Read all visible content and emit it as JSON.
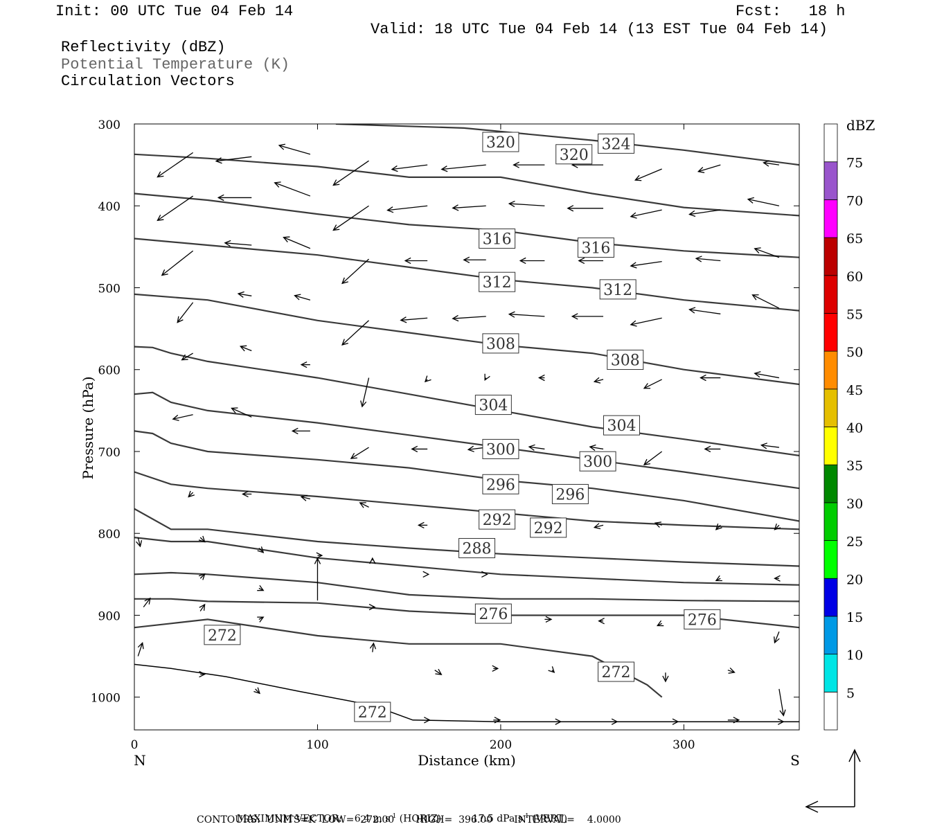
{
  "header": {
    "init": "Init: 00 UTC Tue 04 Feb 14",
    "fcst": "Fcst:   18 h",
    "valid": "Valid: 18 UTC Tue 04 Feb 14 (13 EST Tue 04 Feb 14)"
  },
  "fields": {
    "reflectivity": "Reflectivity (dBZ)",
    "theta": "Potential Temperature (K)",
    "circulation": "Circulation Vectors"
  },
  "footer": {
    "max_vector_label": "MAXIMUM VECTOR:",
    "max_horiz": "6.4 m s",
    "horiz_tag": "(HORIZ)",
    "max_vert": "17.5 dPa s",
    "vert_tag": "(VERT)",
    "exp": "-1",
    "contours_line": "CONTOURS:  UNITS=K  LOW=  272.00       HIGH=  396.00       INTERVAL=    4.0000"
  },
  "colors": {
    "contour": "#3a3a3a",
    "scale": [
      "#00e5e5",
      "#0099e5",
      "#0000e5",
      "#00ff00",
      "#00cc00",
      "#008800",
      "#ffff00",
      "#e5bf00",
      "#ff8c00",
      "#ff0000",
      "#dd0000",
      "#bb0000",
      "#ff00ff",
      "#9955cc",
      "#ffffff"
    ]
  },
  "chart_data": {
    "type": "cross-section",
    "xlabel": "Distance (km)",
    "ylabel": "Pressure (hPa)",
    "xlim": [
      0,
      363
    ],
    "ylim": [
      1040,
      300
    ],
    "x_ticks": [
      "0",
      "100",
      "200",
      "300"
    ],
    "x_tick_values": [
      0,
      100,
      200,
      300
    ],
    "y_ticks": [
      "300",
      "400",
      "500",
      "600",
      "700",
      "800",
      "900",
      "1000"
    ],
    "y_tick_values": [
      300,
      400,
      500,
      600,
      700,
      800,
      900,
      1000
    ],
    "left_end": "N",
    "right_end": "S",
    "colorbar": {
      "unit": "dBZ",
      "labels": [
        "5",
        "10",
        "15",
        "20",
        "25",
        "30",
        "35",
        "40",
        "45",
        "50",
        "55",
        "60",
        "65",
        "70",
        "75"
      ]
    },
    "isentropes": [
      {
        "level": 324,
        "x": [
          110,
          180,
          250,
          300,
          363
        ],
        "p": [
          300,
          305,
          320,
          332,
          350
        ]
      },
      {
        "level": 320,
        "x": [
          0,
          40,
          100,
          150,
          200,
          250,
          300,
          363
        ],
        "p": [
          337,
          342,
          352,
          365,
          365,
          385,
          402,
          412
        ]
      },
      {
        "level": 316,
        "x": [
          0,
          40,
          100,
          150,
          200,
          250,
          300,
          363
        ],
        "p": [
          385,
          393,
          410,
          423,
          430,
          445,
          455,
          463
        ]
      },
      {
        "level": 312,
        "x": [
          0,
          40,
          100,
          150,
          200,
          250,
          300,
          363
        ],
        "p": [
          440,
          448,
          460,
          475,
          490,
          500,
          515,
          528
        ]
      },
      {
        "level": 308,
        "x": [
          0,
          40,
          100,
          150,
          200,
          250,
          300,
          363
        ],
        "p": [
          508,
          515,
          540,
          555,
          570,
          580,
          600,
          618
        ]
      },
      {
        "level": 304,
        "x": [
          0,
          10,
          20,
          40,
          100,
          150,
          200,
          250,
          300,
          363
        ],
        "p": [
          572,
          573,
          580,
          590,
          610,
          630,
          650,
          670,
          685,
          705
        ]
      },
      {
        "level": 300,
        "x": [
          0,
          10,
          20,
          40,
          100,
          150,
          200,
          250,
          300,
          363
        ],
        "p": [
          630,
          628,
          640,
          650,
          665,
          680,
          695,
          710,
          725,
          745
        ]
      },
      {
        "level": 296,
        "x": [
          0,
          10,
          20,
          40,
          100,
          150,
          200,
          250,
          300,
          363
        ],
        "p": [
          675,
          678,
          690,
          700,
          710,
          720,
          735,
          745,
          760,
          785
        ]
      },
      {
        "level": 292,
        "x": [
          0,
          20,
          40,
          100,
          150,
          200,
          250,
          300,
          363
        ],
        "p": [
          725,
          740,
          745,
          755,
          765,
          775,
          785,
          790,
          795
        ]
      },
      {
        "level": 288,
        "x": [
          0,
          20,
          40,
          100,
          150,
          200,
          250,
          300,
          363
        ],
        "p": [
          770,
          795,
          795,
          810,
          818,
          825,
          830,
          835,
          840
        ]
      },
      {
        "level": 284,
        "x": [
          0,
          20,
          40,
          100,
          150,
          200,
          250,
          300,
          363
        ],
        "p": [
          805,
          810,
          810,
          830,
          840,
          850,
          855,
          860,
          863
        ]
      },
      {
        "level": 280,
        "x": [
          0,
          20,
          40,
          100,
          150,
          200,
          250,
          300,
          363
        ],
        "p": [
          850,
          848,
          850,
          860,
          875,
          880,
          880,
          882,
          883
        ]
      },
      {
        "level": 276,
        "x": [
          0,
          20,
          40,
          100,
          150,
          200,
          250,
          300,
          363
        ],
        "p": [
          880,
          880,
          883,
          885,
          895,
          900,
          900,
          900,
          915
        ]
      },
      {
        "level": 272,
        "x": [
          0,
          20,
          40,
          100,
          150,
          200,
          250,
          280,
          288
        ],
        "p": [
          915,
          910,
          905,
          925,
          935,
          935,
          950,
          985,
          1000
        ]
      }
    ],
    "contour_labels": [
      {
        "text": "324",
        "x": 263,
        "p": 324
      },
      {
        "text": "320",
        "x": 200,
        "p": 322
      },
      {
        "text": "320",
        "x": 240,
        "p": 337
      },
      {
        "text": "316",
        "x": 198,
        "p": 440
      },
      {
        "text": "316",
        "x": 252,
        "p": 451
      },
      {
        "text": "312",
        "x": 198,
        "p": 493
      },
      {
        "text": "312",
        "x": 264,
        "p": 502
      },
      {
        "text": "308",
        "x": 200,
        "p": 568
      },
      {
        "text": "308",
        "x": 268,
        "p": 588
      },
      {
        "text": "304",
        "x": 196,
        "p": 643
      },
      {
        "text": "304",
        "x": 266,
        "p": 668
      },
      {
        "text": "300",
        "x": 200,
        "p": 697
      },
      {
        "text": "300",
        "x": 253,
        "p": 712
      },
      {
        "text": "296",
        "x": 200,
        "p": 740
      },
      {
        "text": "296",
        "x": 238,
        "p": 752
      },
      {
        "text": "292",
        "x": 198,
        "p": 783
      },
      {
        "text": "292",
        "x": 226,
        "p": 793
      },
      {
        "text": "288",
        "x": 187,
        "p": 818
      },
      {
        "text": "276",
        "x": 196,
        "p": 898
      },
      {
        "text": "276",
        "x": 310,
        "p": 905
      },
      {
        "text": "272",
        "x": 48,
        "p": 924
      },
      {
        "text": "272",
        "x": 263,
        "p": 969
      },
      {
        "text": "272",
        "x": 130,
        "p": 1018
      }
    ],
    "vectors": [
      {
        "x": 32,
        "p": 335,
        "u": -3.2,
        "w": -2.2
      },
      {
        "x": 64,
        "p": 340,
        "u": -3.2,
        "w": -0.4
      },
      {
        "x": 96,
        "p": 337,
        "u": -2.8,
        "w": 0.8
      },
      {
        "x": 128,
        "p": 345,
        "u": -3.2,
        "w": -2.2
      },
      {
        "x": 160,
        "p": 350,
        "u": -3.2,
        "w": -0.4
      },
      {
        "x": 192,
        "p": 350,
        "u": -4.0,
        "w": -0.4
      },
      {
        "x": 224,
        "p": 350,
        "u": -2.8,
        "w": 0
      },
      {
        "x": 256,
        "p": 350,
        "u": -2.8,
        "w": 0
      },
      {
        "x": 288,
        "p": 355,
        "u": -2.4,
        "w": -1.0
      },
      {
        "x": 320,
        "p": 350,
        "u": -2.0,
        "w": -0.6
      },
      {
        "x": 352,
        "p": 350,
        "u": -1.4,
        "w": 0.2
      },
      {
        "x": 32,
        "p": 388,
        "u": -3.2,
        "w": -2.2
      },
      {
        "x": 64,
        "p": 390,
        "u": -3.0,
        "w": 0
      },
      {
        "x": 96,
        "p": 388,
        "u": -3.2,
        "w": 1.2
      },
      {
        "x": 128,
        "p": 400,
        "u": -3.2,
        "w": -2.2
      },
      {
        "x": 160,
        "p": 400,
        "u": -3.6,
        "w": -0.4
      },
      {
        "x": 192,
        "p": 400,
        "u": -3.0,
        "w": -0.2
      },
      {
        "x": 224,
        "p": 400,
        "u": -3.2,
        "w": 0.2
      },
      {
        "x": 256,
        "p": 403,
        "u": -3.2,
        "w": 0
      },
      {
        "x": 288,
        "p": 405,
        "u": -2.8,
        "w": -0.6
      },
      {
        "x": 320,
        "p": 405,
        "u": -2.8,
        "w": -0.4
      },
      {
        "x": 352,
        "p": 400,
        "u": -2.8,
        "w": 0.6
      },
      {
        "x": 32,
        "p": 455,
        "u": -2.8,
        "w": -2.2
      },
      {
        "x": 64,
        "p": 448,
        "u": -2.4,
        "w": 0.2
      },
      {
        "x": 96,
        "p": 452,
        "u": -2.4,
        "w": 1.0
      },
      {
        "x": 128,
        "p": 465,
        "u": -2.4,
        "w": -2.2
      },
      {
        "x": 160,
        "p": 467,
        "u": -2.0,
        "w": 0
      },
      {
        "x": 192,
        "p": 466,
        "u": -2.0,
        "w": 0
      },
      {
        "x": 224,
        "p": 467,
        "u": -2.2,
        "w": 0
      },
      {
        "x": 256,
        "p": 467,
        "u": -2.2,
        "w": 0
      },
      {
        "x": 288,
        "p": 468,
        "u": -2.8,
        "w": -0.4
      },
      {
        "x": 320,
        "p": 467,
        "u": -2.2,
        "w": 0.2
      },
      {
        "x": 352,
        "p": 463,
        "u": -2.2,
        "w": 0.8
      },
      {
        "x": 32,
        "p": 518,
        "u": -1.4,
        "w": -1.8
      },
      {
        "x": 64,
        "p": 510,
        "u": -1.2,
        "w": 0.2
      },
      {
        "x": 96,
        "p": 515,
        "u": -1.4,
        "w": 0.4
      },
      {
        "x": 128,
        "p": 540,
        "u": -2.4,
        "w": -2.2
      },
      {
        "x": 160,
        "p": 537,
        "u": -2.4,
        "w": -0.2
      },
      {
        "x": 192,
        "p": 535,
        "u": -3.0,
        "w": -0.2
      },
      {
        "x": 224,
        "p": 535,
        "u": -3.2,
        "w": 0.2
      },
      {
        "x": 256,
        "p": 535,
        "u": -2.8,
        "w": 0
      },
      {
        "x": 288,
        "p": 537,
        "u": -2.8,
        "w": -0.6
      },
      {
        "x": 320,
        "p": 532,
        "u": -2.8,
        "w": 0.4
      },
      {
        "x": 352,
        "p": 525,
        "u": -2.4,
        "w": 1.2
      },
      {
        "x": 32,
        "p": 580,
        "u": -1.0,
        "w": -0.6
      },
      {
        "x": 64,
        "p": 577,
        "u": -1.0,
        "w": 0.4
      },
      {
        "x": 96,
        "p": 594,
        "u": -0.8,
        "w": 0
      },
      {
        "x": 128,
        "p": 610,
        "u": -0.6,
        "w": -2.6
      },
      {
        "x": 160,
        "p": 612,
        "u": -0.2,
        "w": -0.2
      },
      {
        "x": 192,
        "p": 610,
        "u": -0.1,
        "w": -0.2
      },
      {
        "x": 224,
        "p": 610,
        "u": -0.5,
        "w": 0
      },
      {
        "x": 256,
        "p": 612,
        "u": -0.8,
        "w": -0.2
      },
      {
        "x": 288,
        "p": 612,
        "u": -1.6,
        "w": -0.8
      },
      {
        "x": 320,
        "p": 610,
        "u": -1.8,
        "w": 0
      },
      {
        "x": 352,
        "p": 610,
        "u": -2.2,
        "w": 0.4
      },
      {
        "x": 32,
        "p": 655,
        "u": -1.8,
        "w": -0.4
      },
      {
        "x": 64,
        "p": 658,
        "u": -1.8,
        "w": 0.8
      },
      {
        "x": 96,
        "p": 675,
        "u": -1.6,
        "w": 0
      },
      {
        "x": 128,
        "p": 695,
        "u": -1.6,
        "w": -1.0
      },
      {
        "x": 160,
        "p": 697,
        "u": -1.4,
        "w": 0
      },
      {
        "x": 192,
        "p": 695,
        "u": -1.6,
        "w": -0.2
      },
      {
        "x": 224,
        "p": 697,
        "u": -1.4,
        "w": 0.2
      },
      {
        "x": 256,
        "p": 697,
        "u": -1.2,
        "w": 0.2
      },
      {
        "x": 288,
        "p": 700,
        "u": -1.6,
        "w": -1.2
      },
      {
        "x": 320,
        "p": 697,
        "u": -1.4,
        "w": 0
      },
      {
        "x": 352,
        "p": 695,
        "u": -1.6,
        "w": 0.2
      },
      {
        "x": 32,
        "p": 750,
        "u": -0.4,
        "w": -0.4
      },
      {
        "x": 64,
        "p": 752,
        "u": -0.8,
        "w": 0
      },
      {
        "x": 96,
        "p": 758,
        "u": -0.8,
        "w": 0.2
      },
      {
        "x": 128,
        "p": 768,
        "u": -0.8,
        "w": 0.4
      },
      {
        "x": 160,
        "p": 790,
        "u": -0.8,
        "w": 0
      },
      {
        "x": 192,
        "p": 790,
        "u": -0.4,
        "w": 0.2
      },
      {
        "x": 224,
        "p": 790,
        "u": -0.8,
        "w": 0
      },
      {
        "x": 256,
        "p": 790,
        "u": -0.8,
        "w": -0.2
      },
      {
        "x": 288,
        "p": 790,
        "u": -0.6,
        "w": 0.2
      },
      {
        "x": 320,
        "p": 790,
        "u": -0.4,
        "w": -0.4
      },
      {
        "x": 352,
        "p": 790,
        "u": -0.4,
        "w": -0.4
      },
      {
        "x": 2,
        "p": 805,
        "u": 0.2,
        "w": -0.8
      },
      {
        "x": 36,
        "p": 805,
        "u": 0.4,
        "w": -0.4
      },
      {
        "x": 68,
        "p": 818,
        "u": 0.4,
        "w": -0.4
      },
      {
        "x": 100,
        "p": 827,
        "u": 0.4,
        "w": 0
      },
      {
        "x": 130,
        "p": 833,
        "u": 0,
        "w": 0.2
      },
      {
        "x": 36,
        "p": 855,
        "u": 0.4,
        "w": 0.4
      },
      {
        "x": 68,
        "p": 867,
        "u": 0.4,
        "w": -0.2
      },
      {
        "x": 100,
        "p": 882,
        "u": 0,
        "w": 3.8
      },
      {
        "x": 160,
        "p": 850,
        "u": 0.1,
        "w": 0
      },
      {
        "x": 192,
        "p": 850,
        "u": 0.1,
        "w": 0
      },
      {
        "x": 320,
        "p": 855,
        "u": -0.4,
        "w": -0.2
      },
      {
        "x": 352,
        "p": 855,
        "u": -0.4,
        "w": 0
      },
      {
        "x": 5,
        "p": 890,
        "u": 0.6,
        "w": 0.8
      },
      {
        "x": 36,
        "p": 895,
        "u": 0.4,
        "w": 0.6
      },
      {
        "x": 68,
        "p": 905,
        "u": 0.4,
        "w": 0.2
      },
      {
        "x": 130,
        "p": 890,
        "u": 0.2,
        "w": 0
      },
      {
        "x": 224,
        "p": 905,
        "u": 0.6,
        "w": 0
      },
      {
        "x": 256,
        "p": 907,
        "u": -0.4,
        "w": 0
      },
      {
        "x": 288,
        "p": 910,
        "u": -0.4,
        "w": -0.2
      },
      {
        "x": 352,
        "p": 920,
        "u": -0.4,
        "w": -1.0
      },
      {
        "x": 2,
        "p": 950,
        "u": 0.4,
        "w": 1.2
      },
      {
        "x": 130,
        "p": 945,
        "u": 0.1,
        "w": 0.8
      },
      {
        "x": 164,
        "p": 967,
        "u": 0.6,
        "w": -0.4
      },
      {
        "x": 196,
        "p": 965,
        "u": 0.4,
        "w": 0
      },
      {
        "x": 228,
        "p": 967,
        "u": 0.2,
        "w": -0.2
      },
      {
        "x": 290,
        "p": 970,
        "u": 0,
        "w": -0.8
      },
      {
        "x": 324,
        "p": 967,
        "u": 0.6,
        "w": -0.2
      },
      {
        "x": 352,
        "p": 990,
        "u": 0.4,
        "w": -2.4
      },
      {
        "x": 36,
        "p": 972,
        "u": 0.4,
        "w": 0
      },
      {
        "x": 66,
        "p": 990,
        "u": 0.4,
        "w": -0.4
      },
      {
        "x": 160,
        "p": 1028,
        "u": 0.2,
        "w": 0
      },
      {
        "x": 196,
        "p": 1028,
        "u": 0.6,
        "w": 0
      },
      {
        "x": 228,
        "p": 1030,
        "u": 0.8,
        "w": 0
      },
      {
        "x": 260,
        "p": 1030,
        "u": 0.6,
        "w": 0
      },
      {
        "x": 292,
        "p": 1030,
        "u": 0.8,
        "w": 0
      },
      {
        "x": 324,
        "p": 1028,
        "u": 1.0,
        "w": 0
      },
      {
        "x": 352,
        "p": 1030,
        "u": 0.4,
        "w": 0
      }
    ]
  }
}
